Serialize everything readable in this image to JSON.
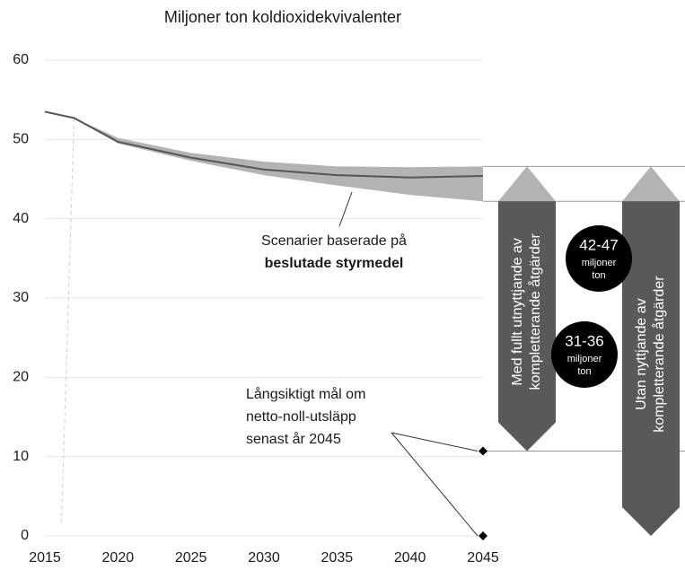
{
  "chart_data": {
    "type": "line",
    "title": "Miljoner ton koldioxidekvivalenter",
    "x": [
      2015,
      2017,
      2020,
      2025,
      2030,
      2035,
      2040,
      2045
    ],
    "series": [
      {
        "color": "#555555",
        "values": [
          53.5,
          52.7,
          49.7,
          47.7,
          46.2,
          45.5,
          45.2,
          45.4
        ]
      }
    ],
    "band": {
      "color": "#b3b3b3",
      "lower": [
        null,
        52.7,
        49.5,
        47.3,
        45.5,
        44.2,
        43.0,
        42.2
      ],
      "upper": [
        null,
        52.7,
        50.2,
        48.3,
        47.2,
        46.6,
        46.5,
        46.6
      ]
    },
    "xlim": [
      2015,
      2045
    ],
    "xticks": [
      2015,
      2020,
      2025,
      2030,
      2035,
      2040,
      2045
    ],
    "ylim": [
      0,
      60
    ],
    "yticks": [
      0,
      10,
      20,
      30,
      40,
      50,
      60
    ],
    "grid": true,
    "targets": [
      {
        "x": 2045,
        "y": 10.7
      },
      {
        "x": 2045,
        "y": 0
      }
    ],
    "annotations": {
      "scenario": [
        "Scenarier baserade på",
        "beslutade styrmedel"
      ],
      "goal": [
        "Långsiktigt mål om",
        "netto-noll-utsläpp",
        "senast år 2045"
      ],
      "arrow_with": [
        "Med fullt utnyttjande av",
        "kompletterande åtgärder"
      ],
      "arrow_without": [
        "Utan nyttjande av",
        "kompletterande åtgärder"
      ],
      "range_without": [
        "42-47",
        "miljoner",
        "ton"
      ],
      "range_with": [
        "31-36",
        "miljoner",
        "ton"
      ]
    }
  }
}
